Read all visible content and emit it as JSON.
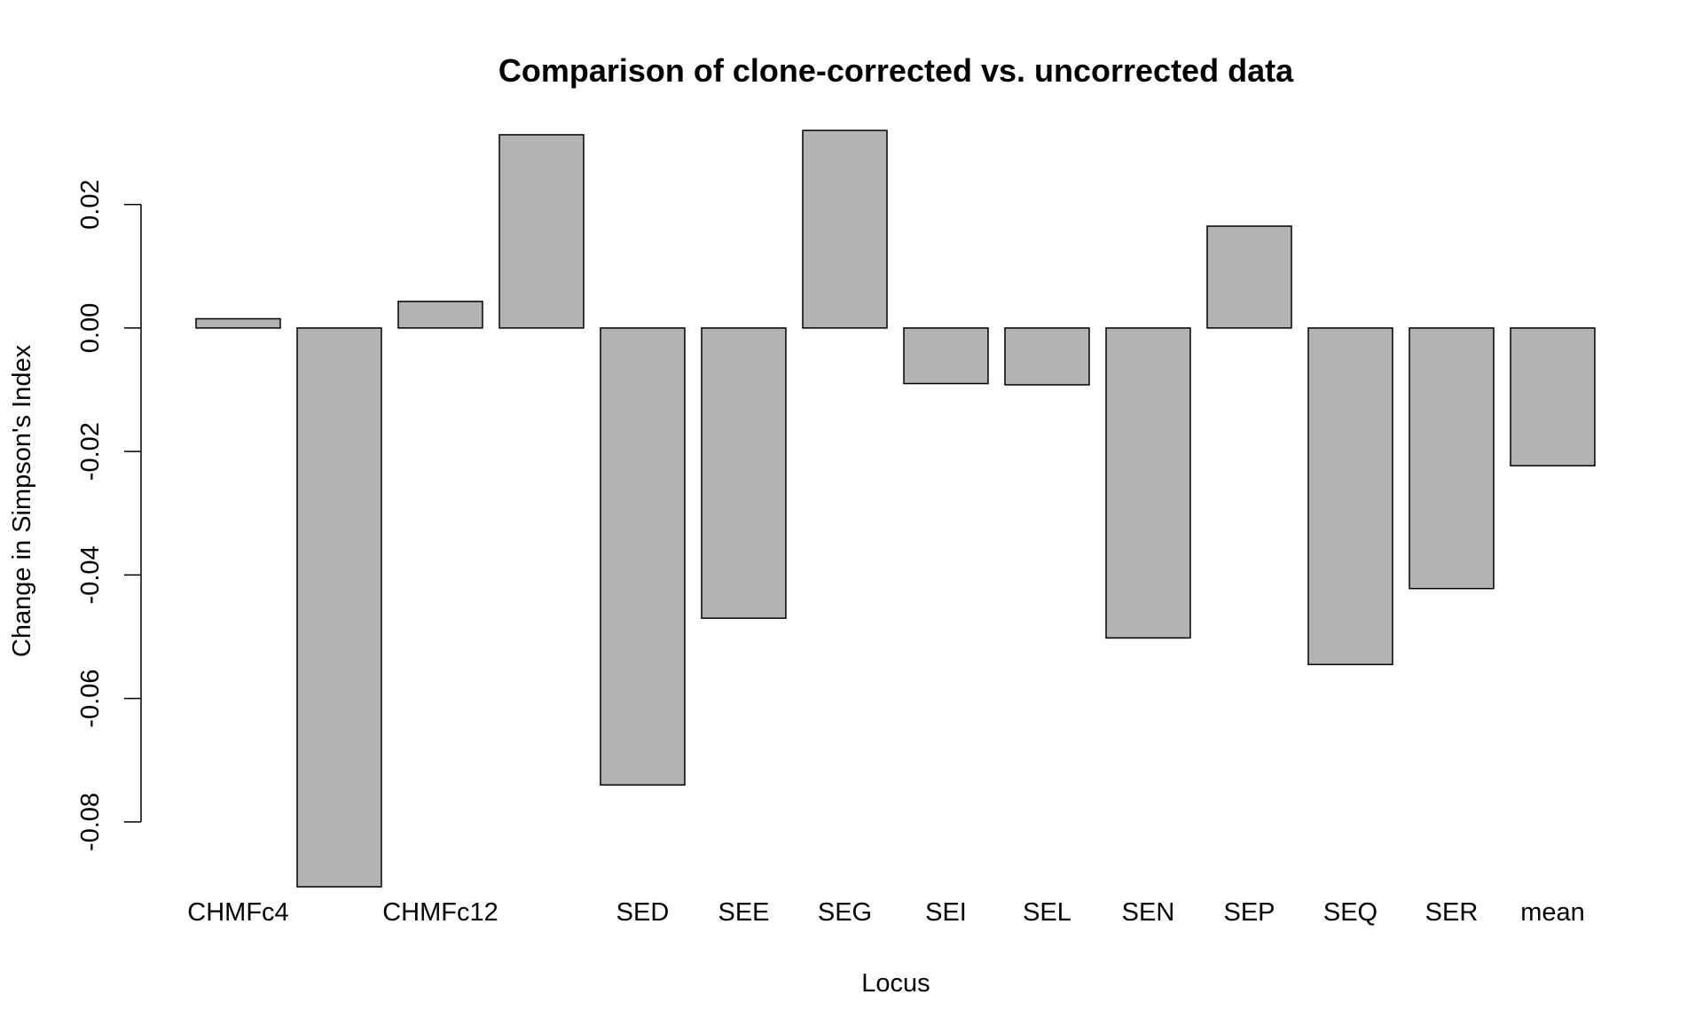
{
  "chart_data": {
    "type": "bar",
    "title": "Comparison of clone-corrected vs. uncorrected data",
    "xlabel": "Locus",
    "ylabel": "Change in Simpson's Index",
    "categories": [
      "CHMFc4",
      "",
      "CHMFc12",
      "",
      "SED",
      "SEE",
      "SEG",
      "SEI",
      "SEL",
      "SEN",
      "SEP",
      "SEQ",
      "SER",
      "mean"
    ],
    "values": [
      0.0015,
      -0.0905,
      0.0043,
      0.0313,
      -0.074,
      -0.047,
      0.032,
      -0.009,
      -0.0092,
      -0.0502,
      0.0165,
      -0.0545,
      -0.0422,
      -0.0223
    ],
    "yticks": [
      -0.08,
      -0.06,
      -0.04,
      -0.02,
      0.0,
      0.02
    ],
    "ytick_labels": [
      "-0.08",
      "-0.06",
      "-0.04",
      "-0.02",
      "0.00",
      "0.02"
    ],
    "ylim": [
      -0.0905,
      0.0323
    ],
    "grid": false,
    "legend": "none",
    "bar_fill": "#b3b3b3",
    "bar_stroke": "#000000"
  }
}
